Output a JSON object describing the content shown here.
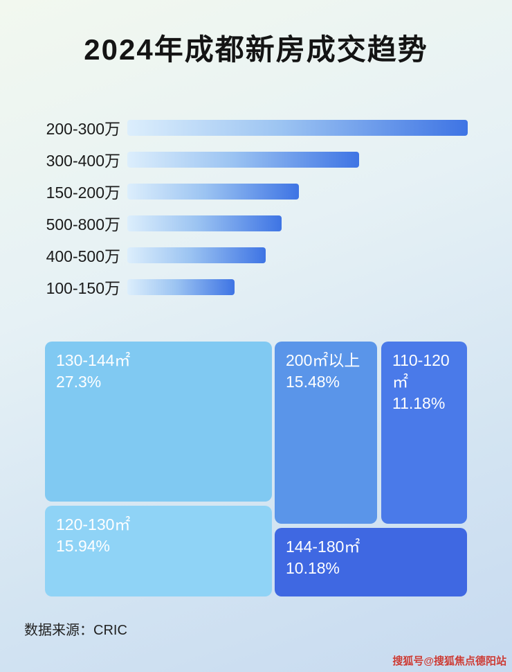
{
  "page": {
    "title": "2024年成都新房成交趋势",
    "source_label": "数据来源：CRIC",
    "watermark": "搜狐号@搜狐焦点德阳站",
    "background_top": "#f2f8ef",
    "background_bottom": "#c7daf0"
  },
  "chart_data": [
    {
      "type": "bar",
      "title": "2024年成都新房成交趋势",
      "orientation": "horizontal",
      "axis": "none",
      "grid": false,
      "legend": "none",
      "bar_gradient": [
        "#dceefc",
        "#3e74e4"
      ],
      "categories": [
        "200-300万",
        "300-400万",
        "150-200万",
        "500-800万",
        "400-500万",
        "100-150万"
      ],
      "values_relative_pct": [
        100,
        68,
        50.5,
        45.4,
        40.6,
        31.5
      ]
    },
    {
      "type": "treemap",
      "title": "",
      "items": [
        {
          "label": "130-144㎡",
          "value": "27.3%",
          "color": "#80c9f2"
        },
        {
          "label": "120-130㎡",
          "value": "15.94%",
          "color": "#8fd3f6"
        },
        {
          "label": "200㎡以上",
          "value": "15.48%",
          "color": "#5а95e9"
        },
        {
          "label": "110-120㎡",
          "value": "11.18%",
          "color": "#4a7ae9"
        },
        {
          "label": "144-180㎡",
          "value": "10.18%",
          "color": "#3f68e2"
        }
      ]
    }
  ]
}
